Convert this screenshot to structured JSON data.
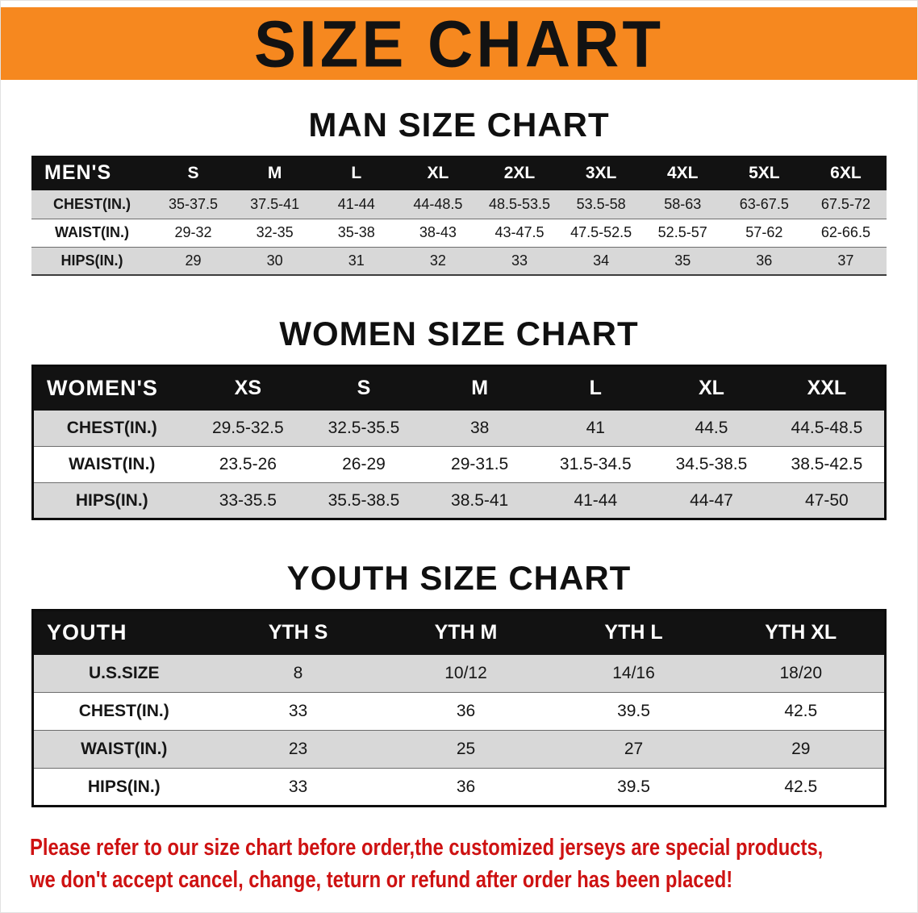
{
  "banner": {
    "title": "SIZE CHART"
  },
  "sections": [
    {
      "id": "men",
      "heading": "MAN SIZE CHART",
      "table": {
        "corner": "MEN'S",
        "columns": [
          "S",
          "M",
          "L",
          "XL",
          "2XL",
          "3XL",
          "4XL",
          "5XL",
          "6XL"
        ],
        "rows": [
          {
            "label": "CHEST(IN.)",
            "values": [
              "35-37.5",
              "37.5-41",
              "41-44",
              "44-48.5",
              "48.5-53.5",
              "53.5-58",
              "58-63",
              "63-67.5",
              "67.5-72"
            ]
          },
          {
            "label": "WAIST(IN.)",
            "values": [
              "29-32",
              "32-35",
              "35-38",
              "38-43",
              "43-47.5",
              "47.5-52.5",
              "52.5-57",
              "57-62",
              "62-66.5"
            ]
          },
          {
            "label": "HIPS(IN.)",
            "values": [
              "29",
              "30",
              "31",
              "32",
              "33",
              "34",
              "35",
              "36",
              "37"
            ]
          }
        ]
      }
    },
    {
      "id": "women",
      "heading": "WOMEN SIZE CHART",
      "table": {
        "corner": "WOMEN'S",
        "columns": [
          "XS",
          "S",
          "M",
          "L",
          "XL",
          "XXL"
        ],
        "rows": [
          {
            "label": "CHEST(IN.)",
            "values": [
              "29.5-32.5",
              "32.5-35.5",
              "38",
              "41",
              "44.5",
              "44.5-48.5"
            ]
          },
          {
            "label": "WAIST(IN.)",
            "values": [
              "23.5-26",
              "26-29",
              "29-31.5",
              "31.5-34.5",
              "34.5-38.5",
              "38.5-42.5"
            ]
          },
          {
            "label": "HIPS(IN.)",
            "values": [
              "33-35.5",
              "35.5-38.5",
              "38.5-41",
              "41-44",
              "44-47",
              "47-50"
            ]
          }
        ]
      }
    },
    {
      "id": "youth",
      "heading": "YOUTH SIZE CHART",
      "table": {
        "corner": "YOUTH",
        "columns": [
          "YTH S",
          "YTH M",
          "YTH L",
          "YTH XL"
        ],
        "rows": [
          {
            "label": "U.S.SIZE",
            "values": [
              "8",
              "10/12",
              "14/16",
              "18/20"
            ]
          },
          {
            "label": "CHEST(IN.)",
            "values": [
              "33",
              "36",
              "39.5",
              "42.5"
            ]
          },
          {
            "label": "WAIST(IN.)",
            "values": [
              "23",
              "25",
              "27",
              "29"
            ]
          },
          {
            "label": "HIPS(IN.)",
            "values": [
              "33",
              "36",
              "39.5",
              "42.5"
            ]
          }
        ]
      }
    }
  ],
  "disclaimer": {
    "line1": "Please refer to our size chart before order,the customized jerseys are special products,",
    "line2": "we don't accept cancel, change, teturn or refund after order has been placed!"
  },
  "colors": {
    "banner_bg": "#f6881f",
    "header_bg": "#121212",
    "row_alt_bg": "#d8d8d8",
    "table_border": "#0d0d0d",
    "disclaimer_text": "#ce1212"
  }
}
